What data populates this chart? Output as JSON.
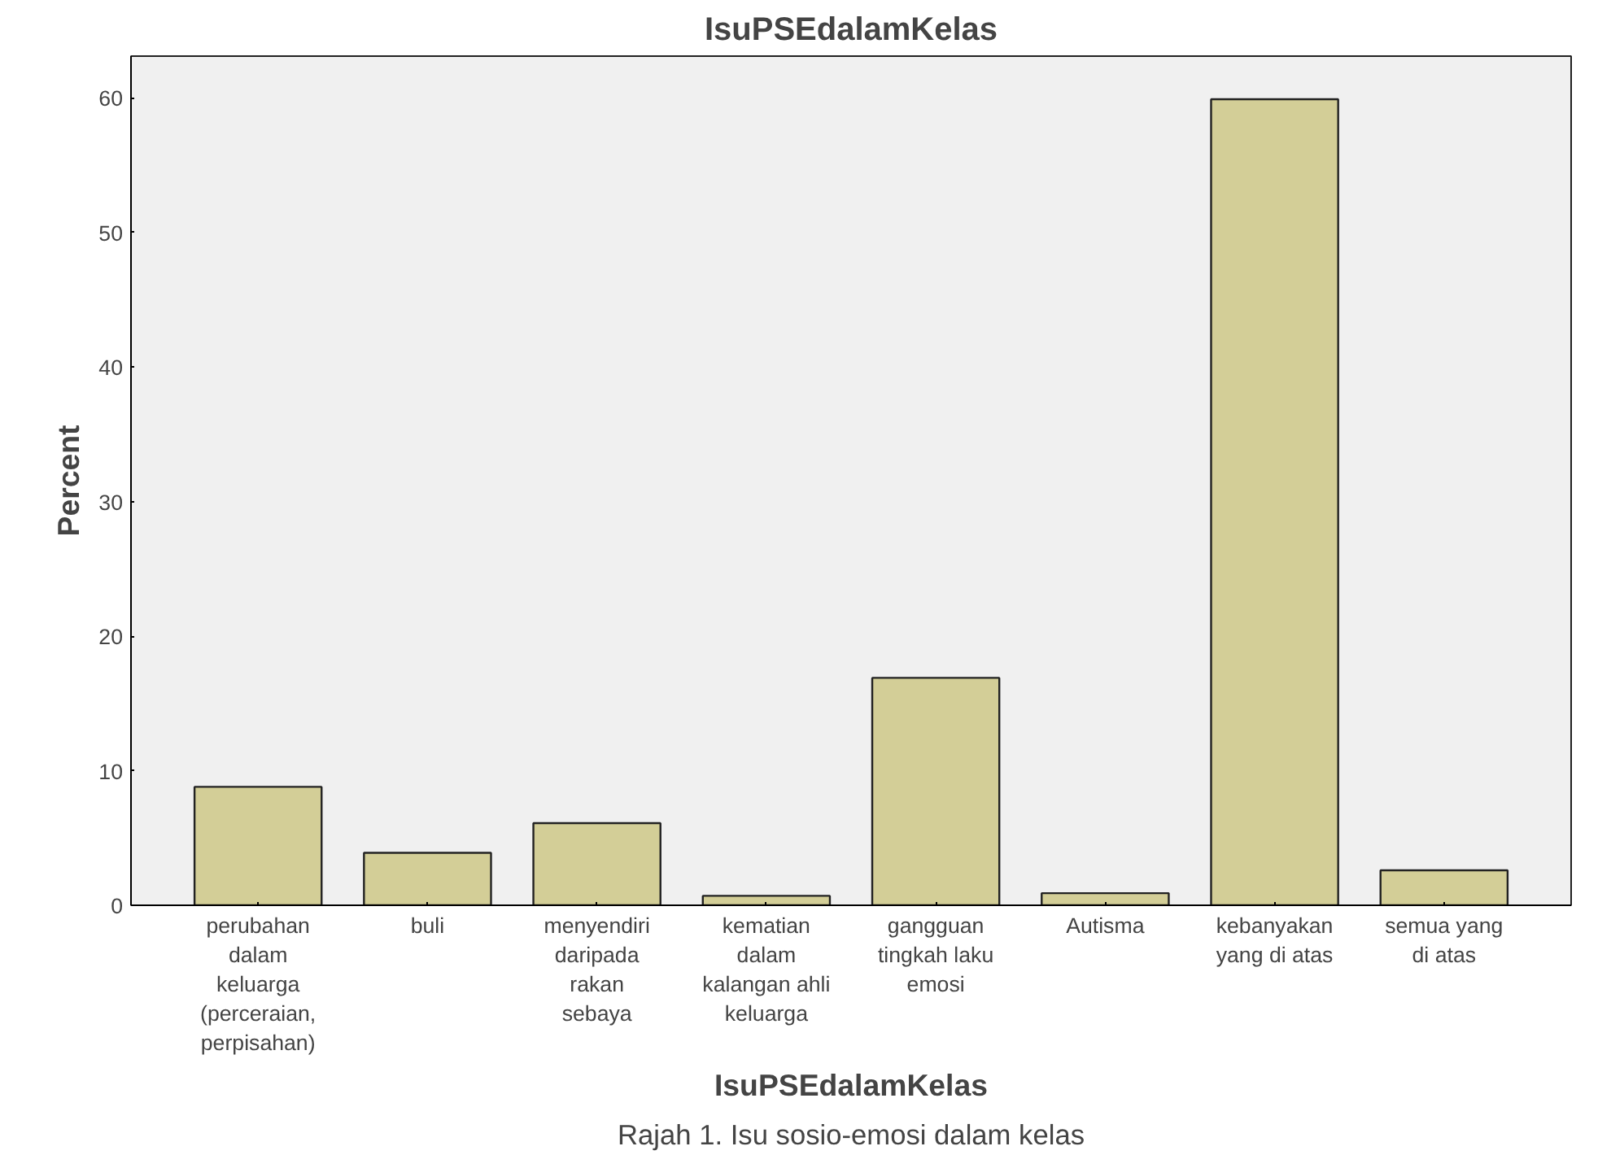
{
  "chart_data": {
    "type": "bar",
    "title": "IsuPSEdalamKelas",
    "xlabel": "IsuPSEdalamKelas",
    "ylabel": "Percent",
    "categories": [
      "perubahan\ndalam\nkeluarga\n(perceraian,\nperpisahan)",
      "buli",
      "menyendiri\ndaripada\nrakan\nsebaya",
      "kematian\ndalam\nkalangan ahli\nkeluarga",
      "gangguan\ntingkah laku\nemosi",
      "Autisma",
      "kebanyakan\nyang di atas",
      "semua yang\ndi atas"
    ],
    "values": [
      8.8,
      3.9,
      6.1,
      0.7,
      16.9,
      0.9,
      59.9,
      2.6
    ],
    "color": "#d3ce97",
    "ylim": [
      0,
      63.1
    ],
    "yticks": [
      0,
      10,
      20,
      30,
      40,
      50,
      60
    ],
    "grid": false,
    "annotations": [
      "Rajah 1. Isu sosio-emosi dalam kelas"
    ]
  }
}
